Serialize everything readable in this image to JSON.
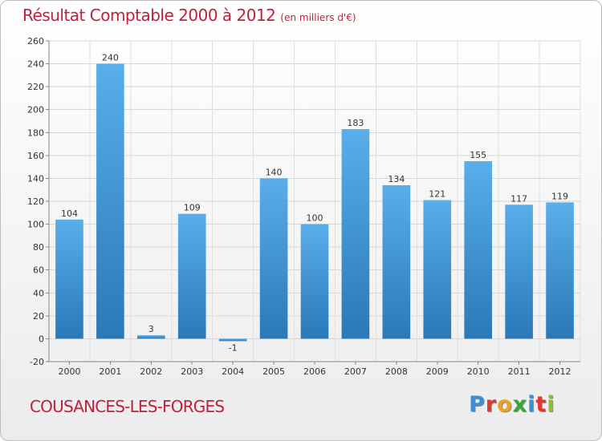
{
  "header": {
    "title": "Résultat Comptable 2000 à 2012",
    "subtitle": "(en milliers d'€)"
  },
  "footer": {
    "commune": "COUSANCES-LES-FORGES",
    "logo_letters": [
      "P",
      "r",
      "o",
      "x",
      "i",
      "t",
      "i"
    ],
    "logo_colors": [
      "#3a8fd6",
      "#e03a2f",
      "#f0a020",
      "#3aa63a",
      "#3a8fd6",
      "#e03a2f",
      "#8cbf3a"
    ]
  },
  "chart_data": {
    "type": "bar",
    "title": "Résultat Comptable 2000 à 2012",
    "subtitle": "(en milliers d'€)",
    "xlabel": "",
    "ylabel": "",
    "categories": [
      "2000",
      "2001",
      "2002",
      "2003",
      "2004",
      "2005",
      "2006",
      "2007",
      "2008",
      "2009",
      "2010",
      "2011",
      "2012"
    ],
    "values": [
      104,
      240,
      3,
      109,
      -1,
      140,
      100,
      183,
      134,
      121,
      155,
      117,
      119
    ],
    "value_labels": [
      "104",
      "240",
      "3",
      "109",
      "-1",
      "140",
      "100",
      "183",
      "134",
      "121",
      "155",
      "117",
      "119"
    ],
    "ylim": [
      -20,
      260
    ],
    "yticks": [
      -20,
      0,
      20,
      40,
      60,
      80,
      100,
      120,
      140,
      160,
      180,
      200,
      220,
      240,
      260
    ],
    "grid": true,
    "bar_color_top": "#5aaeea",
    "bar_color_bottom": "#2a78b8",
    "title_color": "#c0203a"
  }
}
